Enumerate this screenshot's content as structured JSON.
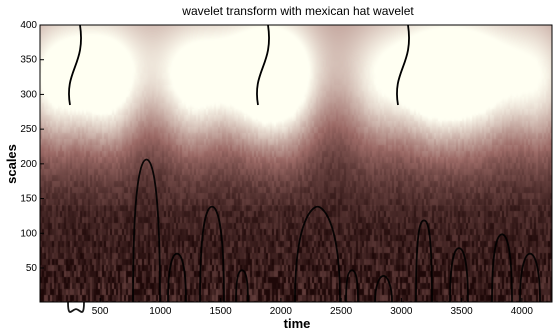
{
  "chart_data": {
    "type": "heatmap",
    "title": "wavelet transform with mexican hat wavelet",
    "xlabel": "time",
    "ylabel": "scales",
    "xlim": [
      1,
      4250
    ],
    "ylim": [
      1,
      400
    ],
    "x_ticks": [
      500,
      1000,
      1500,
      2000,
      2500,
      3000,
      3500,
      4000
    ],
    "y_ticks": [
      50,
      100,
      150,
      200,
      250,
      300,
      350,
      400
    ],
    "colormap": "pink",
    "colors": {
      "low": "#1e0808",
      "mid": "#9c6a66",
      "high": "#fffff2",
      "contour": "#000000"
    },
    "grid": false,
    "legend": "none"
  }
}
